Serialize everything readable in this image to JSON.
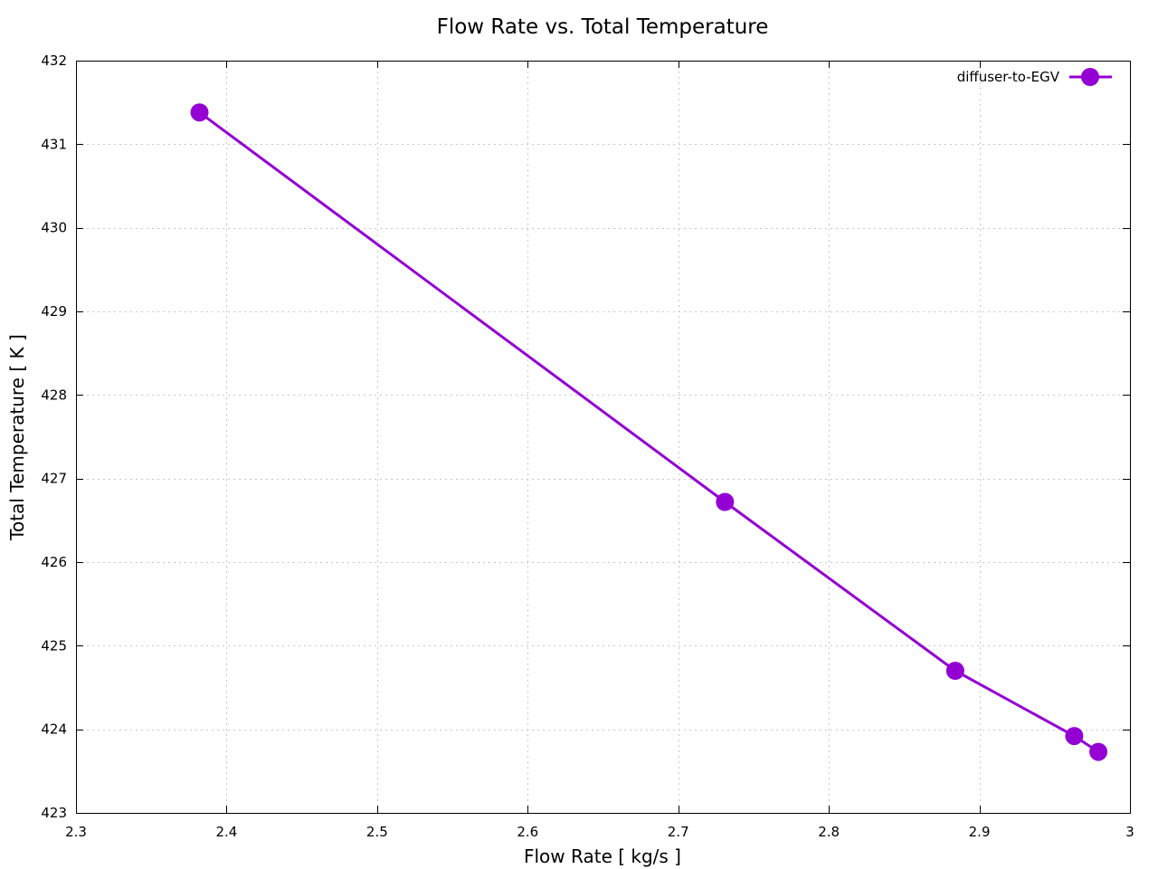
{
  "chart_data": {
    "type": "line",
    "title": "Flow Rate vs. Total Temperature",
    "xlabel": "Flow Rate [ kg/s ]",
    "ylabel": "Total Temperature [ K ]",
    "xlim": [
      2.3,
      3.0
    ],
    "ylim": [
      423,
      432
    ],
    "xticks": [
      "2.3",
      "2.4",
      "2.5",
      "2.6",
      "2.7",
      "2.8",
      "2.9",
      "3"
    ],
    "yticks": [
      "423",
      "424",
      "425",
      "426",
      "427",
      "428",
      "429",
      "430",
      "431",
      "432"
    ],
    "grid": true,
    "legend_position": "top-right",
    "series": [
      {
        "name": "diffuser-to-EGV",
        "color": "#9400D3",
        "marker": "circle",
        "x": [
          2.382,
          2.731,
          2.884,
          2.963,
          2.979
        ],
        "y": [
          431.38,
          426.72,
          424.7,
          423.92,
          423.73
        ]
      }
    ]
  }
}
